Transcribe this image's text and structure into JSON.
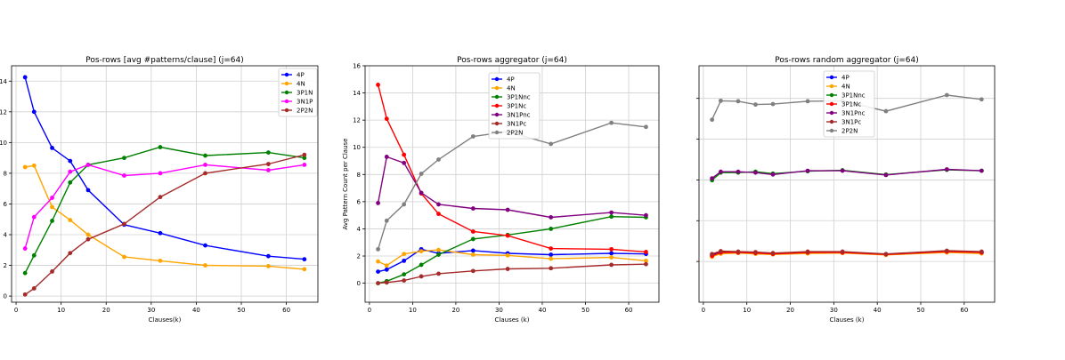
{
  "chart_data": [
    {
      "type": "line",
      "title": "Pos-rows [avg #patterns/clause] (j=64)",
      "xlabel": "Clauses(k)",
      "ylabel": "",
      "xlim": [
        -1,
        67
      ],
      "ylim": [
        -0.4,
        15.0
      ],
      "xticks": [
        0,
        10,
        20,
        30,
        40,
        50,
        60
      ],
      "yticks": [
        0,
        2,
        4,
        6,
        8,
        10,
        12,
        14
      ],
      "grid": true,
      "legend": "top-right",
      "x": [
        2,
        4,
        8,
        12,
        16,
        24,
        32,
        42,
        56,
        64
      ],
      "series": [
        {
          "name": "4P",
          "color": "#0000ff",
          "values": [
            14.25,
            12.0,
            9.65,
            8.8,
            6.9,
            4.65,
            4.1,
            3.3,
            2.6,
            2.4
          ]
        },
        {
          "name": "4N",
          "color": "#ffa500",
          "values": [
            8.4,
            8.5,
            5.8,
            4.95,
            4.0,
            2.55,
            2.3,
            2.0,
            1.95,
            1.75
          ]
        },
        {
          "name": "3P1N",
          "color": "#008000",
          "values": [
            1.5,
            2.65,
            4.9,
            7.4,
            8.55,
            9.0,
            9.7,
            9.15,
            9.35,
            9.0
          ]
        },
        {
          "name": "3N1P",
          "color": "#ff00ff",
          "values": [
            3.1,
            5.15,
            6.4,
            8.1,
            8.55,
            7.85,
            8.0,
            8.55,
            8.2,
            8.55
          ]
        },
        {
          "name": "2P2N",
          "color": "#a52a2a",
          "values": [
            0.1,
            0.5,
            1.6,
            2.8,
            3.7,
            4.7,
            6.45,
            8.0,
            8.6,
            9.2
          ]
        }
      ]
    },
    {
      "type": "line",
      "title": "Pos-rows aggregator (j=64)",
      "xlabel": "Clauses (k)",
      "ylabel": "Avg Pattern Count per Clause",
      "xlim": [
        -1,
        67
      ],
      "ylim": [
        -1.4,
        16.0
      ],
      "xticks": [
        0,
        10,
        20,
        30,
        40,
        50,
        60
      ],
      "yticks": [
        0,
        2,
        4,
        6,
        8,
        10,
        12,
        14,
        16
      ],
      "grid": true,
      "legend": "upper center",
      "x": [
        2,
        4,
        8,
        12,
        16,
        24,
        32,
        42,
        56,
        64
      ],
      "series": [
        {
          "name": "4P",
          "color": "#0000ff",
          "values": [
            0.85,
            1.0,
            1.65,
            2.5,
            2.2,
            2.4,
            2.2,
            2.1,
            2.2,
            2.15
          ]
        },
        {
          "name": "4N",
          "color": "#ffa500",
          "values": [
            1.6,
            1.3,
            2.15,
            2.35,
            2.45,
            2.1,
            2.05,
            1.8,
            1.9,
            1.65
          ]
        },
        {
          "name": "3P1Nnc",
          "color": "#008000",
          "values": [
            0.0,
            0.15,
            0.65,
            1.35,
            2.1,
            3.25,
            3.55,
            4.0,
            4.9,
            4.85
          ]
        },
        {
          "name": "3P1Nc",
          "color": "#ff0000",
          "values": [
            14.6,
            12.1,
            9.45,
            6.6,
            5.1,
            3.8,
            3.5,
            2.55,
            2.5,
            2.3
          ]
        },
        {
          "name": "3N1Pnc",
          "color": "#800080",
          "values": [
            5.9,
            9.3,
            8.85,
            6.65,
            5.8,
            5.5,
            5.4,
            4.85,
            5.2,
            5.0
          ]
        },
        {
          "name": "3N1Pc",
          "color": "#a52a2a",
          "values": [
            0.0,
            0.05,
            0.2,
            0.5,
            0.7,
            0.9,
            1.05,
            1.1,
            1.35,
            1.4
          ]
        },
        {
          "name": "2P2N",
          "color": "#808080",
          "values": [
            2.5,
            4.6,
            5.8,
            8.05,
            9.1,
            10.8,
            11.15,
            10.25,
            11.8,
            11.5
          ]
        }
      ]
    },
    {
      "type": "line",
      "title": "Pos-rows random aggregator (j=64)",
      "xlabel": "Clauses (k)",
      "ylabel": "",
      "xlim": [
        -1,
        67
      ],
      "ylim": [
        0,
        1
      ],
      "xticks": [
        0,
        10,
        20,
        30,
        40,
        50,
        60
      ],
      "yticks": [],
      "grid": true,
      "legend": "upper center",
      "x": [
        2,
        4,
        8,
        12,
        16,
        24,
        32,
        42,
        56,
        64
      ],
      "series": [
        {
          "name": "4P",
          "color": "#0000ff",
          "values": [
            0.2,
            0.212,
            0.212,
            0.21,
            0.206,
            0.21,
            0.212,
            0.202,
            0.216,
            0.212
          ]
        },
        {
          "name": "4N",
          "color": "#ffa500",
          "values": [
            0.192,
            0.205,
            0.208,
            0.204,
            0.202,
            0.206,
            0.208,
            0.2,
            0.21,
            0.206
          ]
        },
        {
          "name": "3P1Nnc",
          "color": "#008000",
          "values": [
            0.516,
            0.548,
            0.548,
            0.552,
            0.544,
            0.554,
            0.558,
            0.54,
            0.56,
            0.556
          ]
        },
        {
          "name": "3P1Nc",
          "color": "#ff0000",
          "values": [
            0.196,
            0.21,
            0.21,
            0.208,
            0.204,
            0.21,
            0.21,
            0.202,
            0.214,
            0.21
          ]
        },
        {
          "name": "3N1Pnc",
          "color": "#800080",
          "values": [
            0.524,
            0.552,
            0.552,
            0.548,
            0.54,
            0.556,
            0.556,
            0.538,
            0.562,
            0.556
          ]
        },
        {
          "name": "3N1Pc",
          "color": "#a52a2a",
          "values": [
            0.204,
            0.216,
            0.214,
            0.212,
            0.208,
            0.214,
            0.214,
            0.204,
            0.218,
            0.214
          ]
        },
        {
          "name": "2P2N",
          "color": "#808080",
          "values": [
            0.772,
            0.852,
            0.85,
            0.836,
            0.838,
            0.85,
            0.852,
            0.808,
            0.876,
            0.858
          ]
        }
      ]
    }
  ]
}
